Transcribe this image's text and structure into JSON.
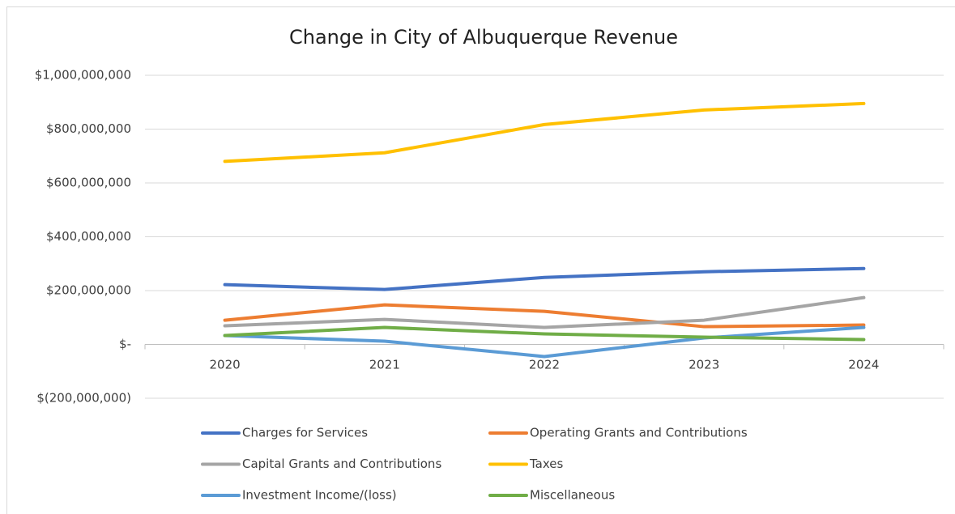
{
  "chart_data": {
    "type": "line",
    "title": "Change in City of Albuquerque  Revenue",
    "categories": [
      "2020",
      "2021",
      "2022",
      "2023",
      "2024"
    ],
    "series": [
      {
        "name": "Charges for Services",
        "color": "#4472c4",
        "values": [
          222000000,
          204000000,
          249000000,
          270000000,
          282000000
        ]
      },
      {
        "name": "Operating Grants and Contributions",
        "color": "#ed7d31",
        "values": [
          90000000,
          147000000,
          123000000,
          66000000,
          72000000
        ]
      },
      {
        "name": "Capital Grants and Contributions",
        "color": "#a5a5a5",
        "values": [
          69000000,
          93000000,
          63000000,
          90000000,
          174000000
        ]
      },
      {
        "name": "Taxes",
        "color": "#ffc000",
        "values": [
          680000000,
          712000000,
          817000000,
          871000000,
          895000000
        ]
      },
      {
        "name": "Investment Income/(loss)",
        "color": "#5b9bd5",
        "values": [
          33000000,
          12000000,
          -45000000,
          24000000,
          63000000
        ]
      },
      {
        "name": "Miscellaneous",
        "color": "#70ad47",
        "values": [
          33000000,
          63000000,
          39000000,
          27000000,
          18000000
        ]
      }
    ],
    "ylim": [
      -200000000,
      1000000000
    ],
    "yticks": [
      {
        "value": -200000000,
        "label": "$(200,000,000)"
      },
      {
        "value": 0,
        "label": "$-"
      },
      {
        "value": 200000000,
        "label": "$200,000,000"
      },
      {
        "value": 400000000,
        "label": "$400,000,000"
      },
      {
        "value": 600000000,
        "label": "$600,000,000"
      },
      {
        "value": 800000000,
        "label": "$800,000,000"
      },
      {
        "value": 1000000000,
        "label": "$1,000,000,000"
      }
    ],
    "grid": true,
    "legend": "bottom"
  }
}
